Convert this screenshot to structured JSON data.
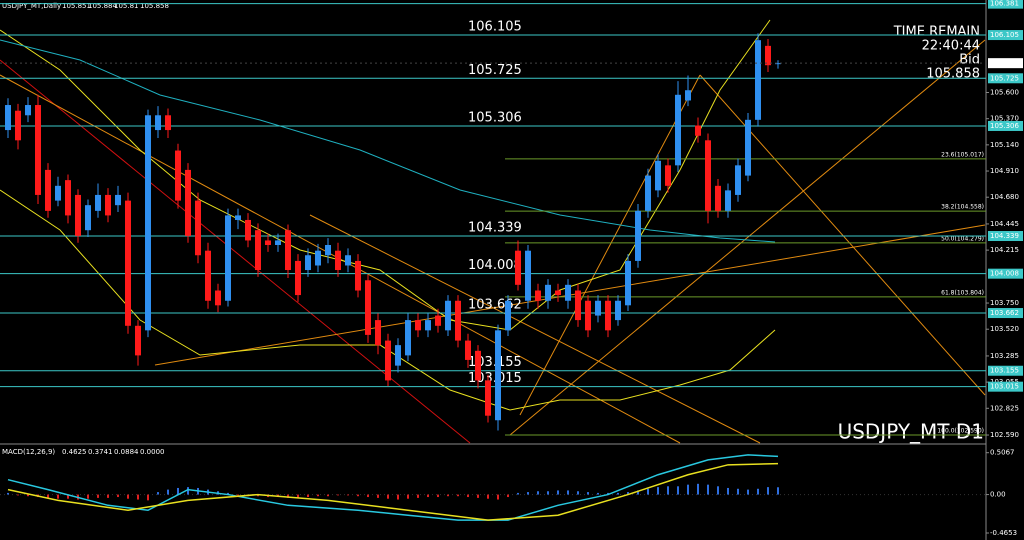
{
  "chart_data": [
    {
      "type": "candlestick",
      "title": "USDJPY_MT D1",
      "header": "USDJPY_MT,Daily",
      "time_remain_label": "TIME REMAIN",
      "time_remain": "22:40:44",
      "bid_label": "Bid",
      "up_color": "#2f8ff0",
      "down_color": "#ff1a1a",
      "level_color": "#3cc8c8",
      "fib_color": "#6b9a2a",
      "open": [
        105.27,
        105.44,
        105.4,
        105.49,
        104.92,
        104.65,
        104.83,
        104.7,
        104.39,
        104.56,
        104.7,
        104.61,
        104.65,
        103.55,
        103.51,
        105.27,
        105.4,
        105.09,
        104.92,
        104.65,
        104.21,
        103.86,
        103.77,
        104.48,
        104.48,
        104.39,
        104.3,
        104.26,
        104.39,
        104.12,
        104.04,
        104.08,
        104.17,
        104.21,
        104.08,
        104.12,
        103.95,
        103.6,
        103.42,
        103.2,
        103.29,
        103.6,
        103.51,
        103.64,
        103.51,
        103.77,
        103.42,
        103.33,
        103.07,
        102.72,
        103.51,
        104.21,
        103.77,
        103.86,
        103.77,
        103.86,
        103.77,
        103.86,
        103.77,
        103.64,
        103.77,
        103.6,
        103.73,
        104.12,
        104.56,
        104.74,
        104.96,
        104.96,
        105.53,
        105.31,
        105.18,
        104.78,
        104.56,
        104.7,
        104.87,
        105.36,
        106.01,
        105.851
      ],
      "high": [
        105.55,
        105.5,
        105.56,
        105.58,
        104.98,
        104.86,
        104.88,
        104.75,
        104.66,
        104.8,
        104.76,
        104.78,
        104.72,
        103.6,
        105.45,
        105.48,
        105.46,
        105.15,
        104.98,
        104.72,
        104.28,
        103.92,
        104.58,
        104.58,
        104.54,
        104.45,
        104.36,
        104.36,
        104.44,
        104.18,
        104.23,
        104.27,
        104.32,
        104.28,
        104.23,
        104.18,
        104.0,
        103.66,
        103.48,
        103.44,
        103.66,
        103.66,
        103.66,
        103.7,
        103.82,
        103.82,
        103.48,
        103.38,
        103.12,
        103.56,
        103.82,
        104.3,
        104.26,
        103.92,
        103.96,
        103.92,
        103.96,
        103.92,
        103.82,
        103.82,
        103.82,
        103.82,
        104.18,
        104.62,
        104.93,
        105.06,
        105.02,
        105.7,
        105.75,
        105.38,
        105.24,
        104.84,
        104.8,
        105.02,
        105.42,
        106.12,
        106.07,
        105.884
      ],
      "low": [
        105.2,
        105.1,
        105.34,
        104.62,
        104.5,
        104.6,
        104.45,
        104.28,
        104.33,
        104.5,
        104.46,
        104.55,
        103.48,
        103.2,
        103.45,
        105.2,
        105.2,
        104.58,
        104.28,
        104.1,
        103.7,
        103.67,
        103.72,
        104.4,
        104.24,
        103.98,
        104.2,
        104.2,
        103.97,
        103.76,
        103.98,
        104.02,
        104.1,
        103.98,
        104.02,
        103.8,
        103.4,
        103.3,
        103.02,
        103.14,
        103.24,
        103.45,
        103.45,
        103.49,
        103.46,
        103.36,
        103.18,
        103.0,
        102.7,
        102.63,
        103.46,
        103.86,
        103.7,
        103.7,
        103.7,
        103.76,
        103.7,
        103.54,
        103.45,
        103.58,
        103.45,
        103.55,
        103.68,
        104.06,
        104.5,
        104.68,
        104.72,
        104.9,
        105.48,
        105.16,
        104.45,
        104.5,
        104.5,
        104.64,
        104.82,
        105.3,
        105.78,
        105.81
      ],
      "close": [
        105.49,
        105.18,
        105.49,
        104.7,
        104.56,
        104.78,
        104.52,
        104.34,
        104.61,
        104.7,
        104.52,
        104.7,
        103.55,
        103.29,
        105.4,
        105.4,
        105.27,
        104.65,
        104.34,
        104.17,
        103.77,
        103.73,
        104.52,
        104.52,
        104.3,
        104.04,
        104.26,
        104.3,
        104.04,
        103.82,
        104.17,
        104.21,
        104.26,
        104.04,
        104.17,
        103.86,
        103.47,
        103.38,
        103.07,
        103.38,
        103.6,
        103.51,
        103.6,
        103.55,
        103.77,
        103.42,
        103.25,
        103.07,
        102.76,
        103.51,
        103.77,
        103.91,
        104.21,
        103.77,
        103.91,
        103.82,
        103.91,
        103.6,
        103.51,
        103.77,
        103.51,
        103.77,
        104.12,
        104.56,
        104.87,
        105.0,
        104.78,
        105.58,
        105.62,
        105.22,
        104.56,
        104.56,
        104.74,
        104.96,
        105.36,
        106.06,
        105.84,
        105.858
      ],
      "ylim": [
        102.52,
        106.413
      ],
      "yticks": [
        {
          "value": 105.6,
          "label": "105.600"
        },
        {
          "value": 105.37,
          "label": "105.370"
        },
        {
          "value": 105.14,
          "label": "105.140"
        },
        {
          "value": 104.91,
          "label": "104.910"
        },
        {
          "value": 104.68,
          "label": "104.680"
        },
        104.445,
        104.215,
        {
          "value": 103.75,
          "label": "103.750"
        },
        {
          "value": 103.52,
          "label": "103.520"
        },
        103.285,
        103.055,
        102.825,
        {
          "value": 102.59,
          "label": "102.590"
        }
      ],
      "levels": [
        106.381,
        106.105,
        105.725,
        105.306,
        104.339,
        104.008,
        103.662,
        103.155,
        103.015
      ],
      "fib": [
        {
          "value": 105.017,
          "label": "23.6(105.017)"
        },
        {
          "value": 104.558,
          "label": "38.2(104.558)"
        },
        {
          "value": 104.279,
          "label": "50.0(104.279)"
        },
        {
          "value": 103.804,
          "label": "61.8(103.804)"
        },
        {
          "value": 102.59,
          "label": "100.0(102.590)"
        }
      ]
    },
    {
      "type": "macd",
      "title": "MACD(12,26,9)",
      "readout": [
        0.4625,
        0.3741,
        0.0884,
        {
          "value": 0,
          "label": "0.0000"
        }
      ],
      "up_color": "#2f6fe0",
      "down_color": "#e02020",
      "histogram": [
        0.02,
        -0.01,
        -0.02,
        -0.03,
        -0.04,
        -0.05,
        -0.05,
        -0.06,
        -0.05,
        -0.04,
        -0.04,
        -0.03,
        -0.05,
        -0.06,
        -0.07,
        0.03,
        0.06,
        0.08,
        0.09,
        0.08,
        0.06,
        0.04,
        0.02,
        -0.01,
        -0.02,
        -0.02,
        -0.03,
        -0.03,
        -0.04,
        -0.04,
        -0.03,
        -0.02,
        -0.02,
        -0.01,
        -0.01,
        -0.02,
        -0.03,
        -0.04,
        -0.05,
        -0.06,
        -0.05,
        -0.04,
        -0.03,
        -0.03,
        -0.02,
        -0.02,
        -0.03,
        -0.04,
        -0.05,
        -0.06,
        -0.03,
        0.02,
        0.03,
        0.04,
        0.04,
        0.05,
        0.05,
        0.04,
        0.03,
        0.02,
        0.02,
        0.02,
        0.03,
        0.05,
        0.07,
        0.09,
        0.1,
        0.1,
        0.12,
        0.13,
        0.12,
        0.1,
        0.08,
        0.07,
        0.06,
        0.07,
        0.09,
        0.0884
      ],
      "series": [
        {
          "name": "MACD",
          "color": "#29c8e0",
          "x": [
            0,
            4,
            10,
            14,
            18,
            22,
            28,
            35,
            40,
            45,
            50,
            55,
            60,
            65,
            70,
            74,
            77
          ],
          "values": [
            0.18,
            0.06,
            -0.13,
            -0.19,
            0.06,
            0,
            -0.13,
            -0.19,
            -0.25,
            -0.31,
            -0.31,
            -0.13,
            0,
            0.24,
            0.42,
            0.48,
            0.4625
          ]
        },
        {
          "name": "Signal",
          "color": "#e8e020",
          "x": [
            0,
            5,
            12,
            18,
            25,
            32,
            40,
            48,
            55,
            62,
            68,
            72,
            77
          ],
          "values": [
            0.06,
            -0.07,
            -0.19,
            -0.07,
            0,
            -0.07,
            -0.19,
            -0.31,
            -0.25,
            0,
            0.24,
            0.36,
            0.3741
          ]
        }
      ],
      "ylim": [
        -0.55,
        0.6
      ],
      "yticks": [
        0.5067,
        {
          "value": 0,
          "label": "0.00"
        },
        -0.4653
      ]
    }
  ]
}
